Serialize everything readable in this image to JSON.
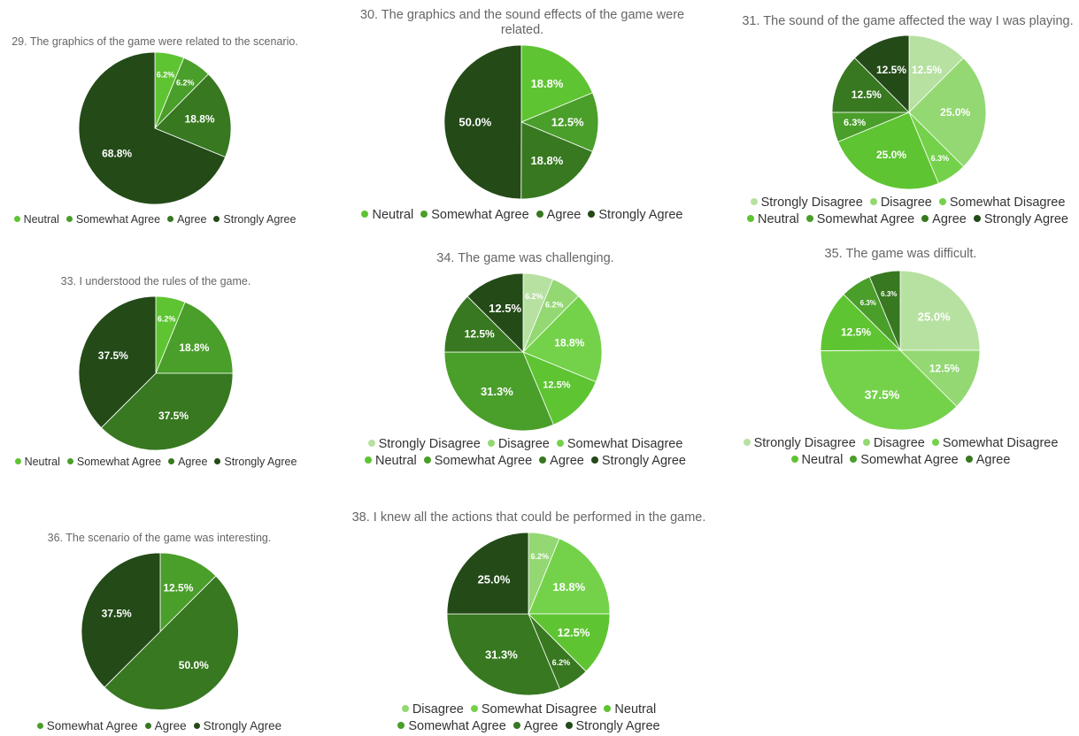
{
  "colors": {
    "Strongly Disagree": "#b7e1a1",
    "Disagree": "#93d872",
    "Somewhat Disagree": "#74d24a",
    "Neutral": "#5ec432",
    "Somewhat Agree": "#4a9e2a",
    "Agree": "#377820",
    "Strongly Agree": "#234a17"
  },
  "chart_data": [
    {
      "type": "pie",
      "title": "29. The graphics of the game were related to the scenario.",
      "categories": [
        "Neutral",
        "Somewhat Agree",
        "Agree",
        "Strongly Agree"
      ],
      "values": [
        6.2,
        6.2,
        18.8,
        68.8
      ],
      "labels": [
        "6.2%",
        "6.2%",
        "18.8%",
        "68.8%"
      ],
      "legend_rows": [
        [
          "Neutral",
          "Somewhat Agree",
          "Agree",
          "Strongly Agree"
        ]
      ],
      "legend": "bottom"
    },
    {
      "type": "pie",
      "title": "30. The graphics and the sound effects of the game were related.",
      "categories": [
        "Neutral",
        "Somewhat Agree",
        "Agree",
        "Strongly Agree"
      ],
      "values": [
        18.8,
        12.5,
        18.8,
        50.0
      ],
      "labels": [
        "18.8%",
        "12.5%",
        "18.8%",
        "50.0%"
      ],
      "legend_rows": [
        [
          "Neutral",
          "Somewhat Agree",
          "Agree",
          "Strongly Agree"
        ]
      ],
      "legend": "bottom"
    },
    {
      "type": "pie",
      "title": "31. The sound of the game affected the way I was playing.",
      "categories": [
        "Strongly Disagree",
        "Disagree",
        "Somewhat Disagree",
        "Neutral",
        "Somewhat Agree",
        "Agree",
        "Strongly Agree"
      ],
      "values": [
        12.5,
        25.0,
        6.3,
        25.0,
        6.3,
        12.5,
        12.5
      ],
      "labels": [
        "12.5%",
        "25.0%",
        "6.3%",
        "25.0%",
        "6.3%",
        "12.5%",
        "12.5%"
      ],
      "legend_rows": [
        [
          "Strongly Disagree",
          "Disagree",
          "Somewhat Disagree"
        ],
        [
          "Neutral",
          "Somewhat Agree",
          "Agree",
          "Strongly Agree"
        ]
      ],
      "legend": "bottom"
    },
    {
      "type": "pie",
      "title": "33. I understood the rules of the game.",
      "categories": [
        "Neutral",
        "Somewhat Agree",
        "Agree",
        "Strongly Agree"
      ],
      "values": [
        6.2,
        18.8,
        37.5,
        37.5
      ],
      "labels": [
        "6.2%",
        "18.8%",
        "37.5%",
        "37.5%"
      ],
      "legend_rows": [
        [
          "Neutral",
          "Somewhat Agree",
          "Agree",
          "Strongly Agree"
        ]
      ],
      "legend": "bottom"
    },
    {
      "type": "pie",
      "title": "34. The game was challenging.",
      "categories": [
        "Strongly Disagree",
        "Disagree",
        "Somewhat Disagree",
        "Neutral",
        "Somewhat Agree",
        "Agree",
        "Strongly Agree"
      ],
      "values": [
        6.2,
        6.2,
        18.8,
        12.5,
        31.3,
        12.5,
        12.5
      ],
      "labels": [
        "6.2%",
        "6.2%",
        "18.8%",
        "12.5%",
        "31.3%",
        "12.5%",
        "12.5%"
      ],
      "legend_rows": [
        [
          "Strongly Disagree",
          "Disagree",
          "Somewhat Disagree"
        ],
        [
          "Neutral",
          "Somewhat Agree",
          "Agree",
          "Strongly Agree"
        ]
      ],
      "legend": "bottom"
    },
    {
      "type": "pie",
      "title": "35. The game was difficult.",
      "categories": [
        "Strongly Disagree",
        "Disagree",
        "Somewhat Disagree",
        "Neutral",
        "Somewhat Agree",
        "Agree"
      ],
      "values": [
        25.0,
        12.5,
        37.5,
        12.5,
        6.3,
        6.3
      ],
      "labels": [
        "25.0%",
        "12.5%",
        "37.5%",
        "12.5%",
        "6.3%",
        "6.3%"
      ],
      "legend_rows": [
        [
          "Strongly Disagree",
          "Disagree",
          "Somewhat Disagree"
        ],
        [
          "Neutral",
          "Somewhat Agree",
          "Agree"
        ]
      ],
      "legend": "bottom"
    },
    {
      "type": "pie",
      "title": "36. The scenario of the game was interesting.",
      "categories": [
        "Somewhat Agree",
        "Agree",
        "Strongly Agree"
      ],
      "values": [
        12.5,
        50.0,
        37.5
      ],
      "labels": [
        "12.5%",
        "50.0%",
        "37.5%"
      ],
      "legend_rows": [
        [
          "Somewhat Agree",
          "Agree",
          "Strongly Agree"
        ]
      ],
      "legend": "bottom"
    },
    {
      "type": "pie",
      "title": "38. I knew all the actions that could be performed in the game.",
      "categories": [
        "Disagree",
        "Somewhat Disagree",
        "Neutral",
        "Somewhat Agree",
        "Agree",
        "Strongly Agree"
      ],
      "values": [
        6.2,
        18.8,
        12.5,
        6.2,
        31.3,
        25.0
      ],
      "slice_colors": [
        "Disagree",
        "Somewhat Disagree",
        "Neutral",
        "Agree",
        "Agree",
        "Strongly Agree"
      ],
      "labels": [
        "6.2%",
        "18.8%",
        "12.5%",
        "6.2%",
        "31.3%",
        "25.0%"
      ],
      "legend_rows": [
        [
          "Disagree",
          "Somewhat Disagree",
          "Neutral"
        ],
        [
          "Somewhat Agree",
          "Agree",
          "Strongly Agree"
        ]
      ],
      "legend": "bottom"
    }
  ]
}
